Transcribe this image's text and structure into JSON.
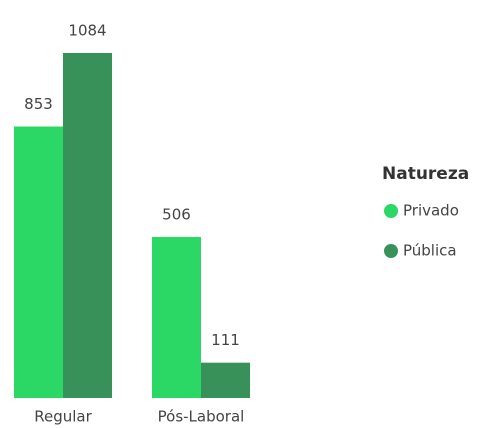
{
  "chart_data": {
    "type": "bar",
    "categories": [
      "Regular",
      "Pós-Laboral"
    ],
    "series": [
      {
        "name": "Privado",
        "color": "#2bd865",
        "values": [
          853,
          506
        ]
      },
      {
        "name": "Pública",
        "color": "#379158",
        "values": [
          1084,
          111
        ]
      }
    ],
    "legend_title": "Natureza",
    "legend": "right"
  }
}
